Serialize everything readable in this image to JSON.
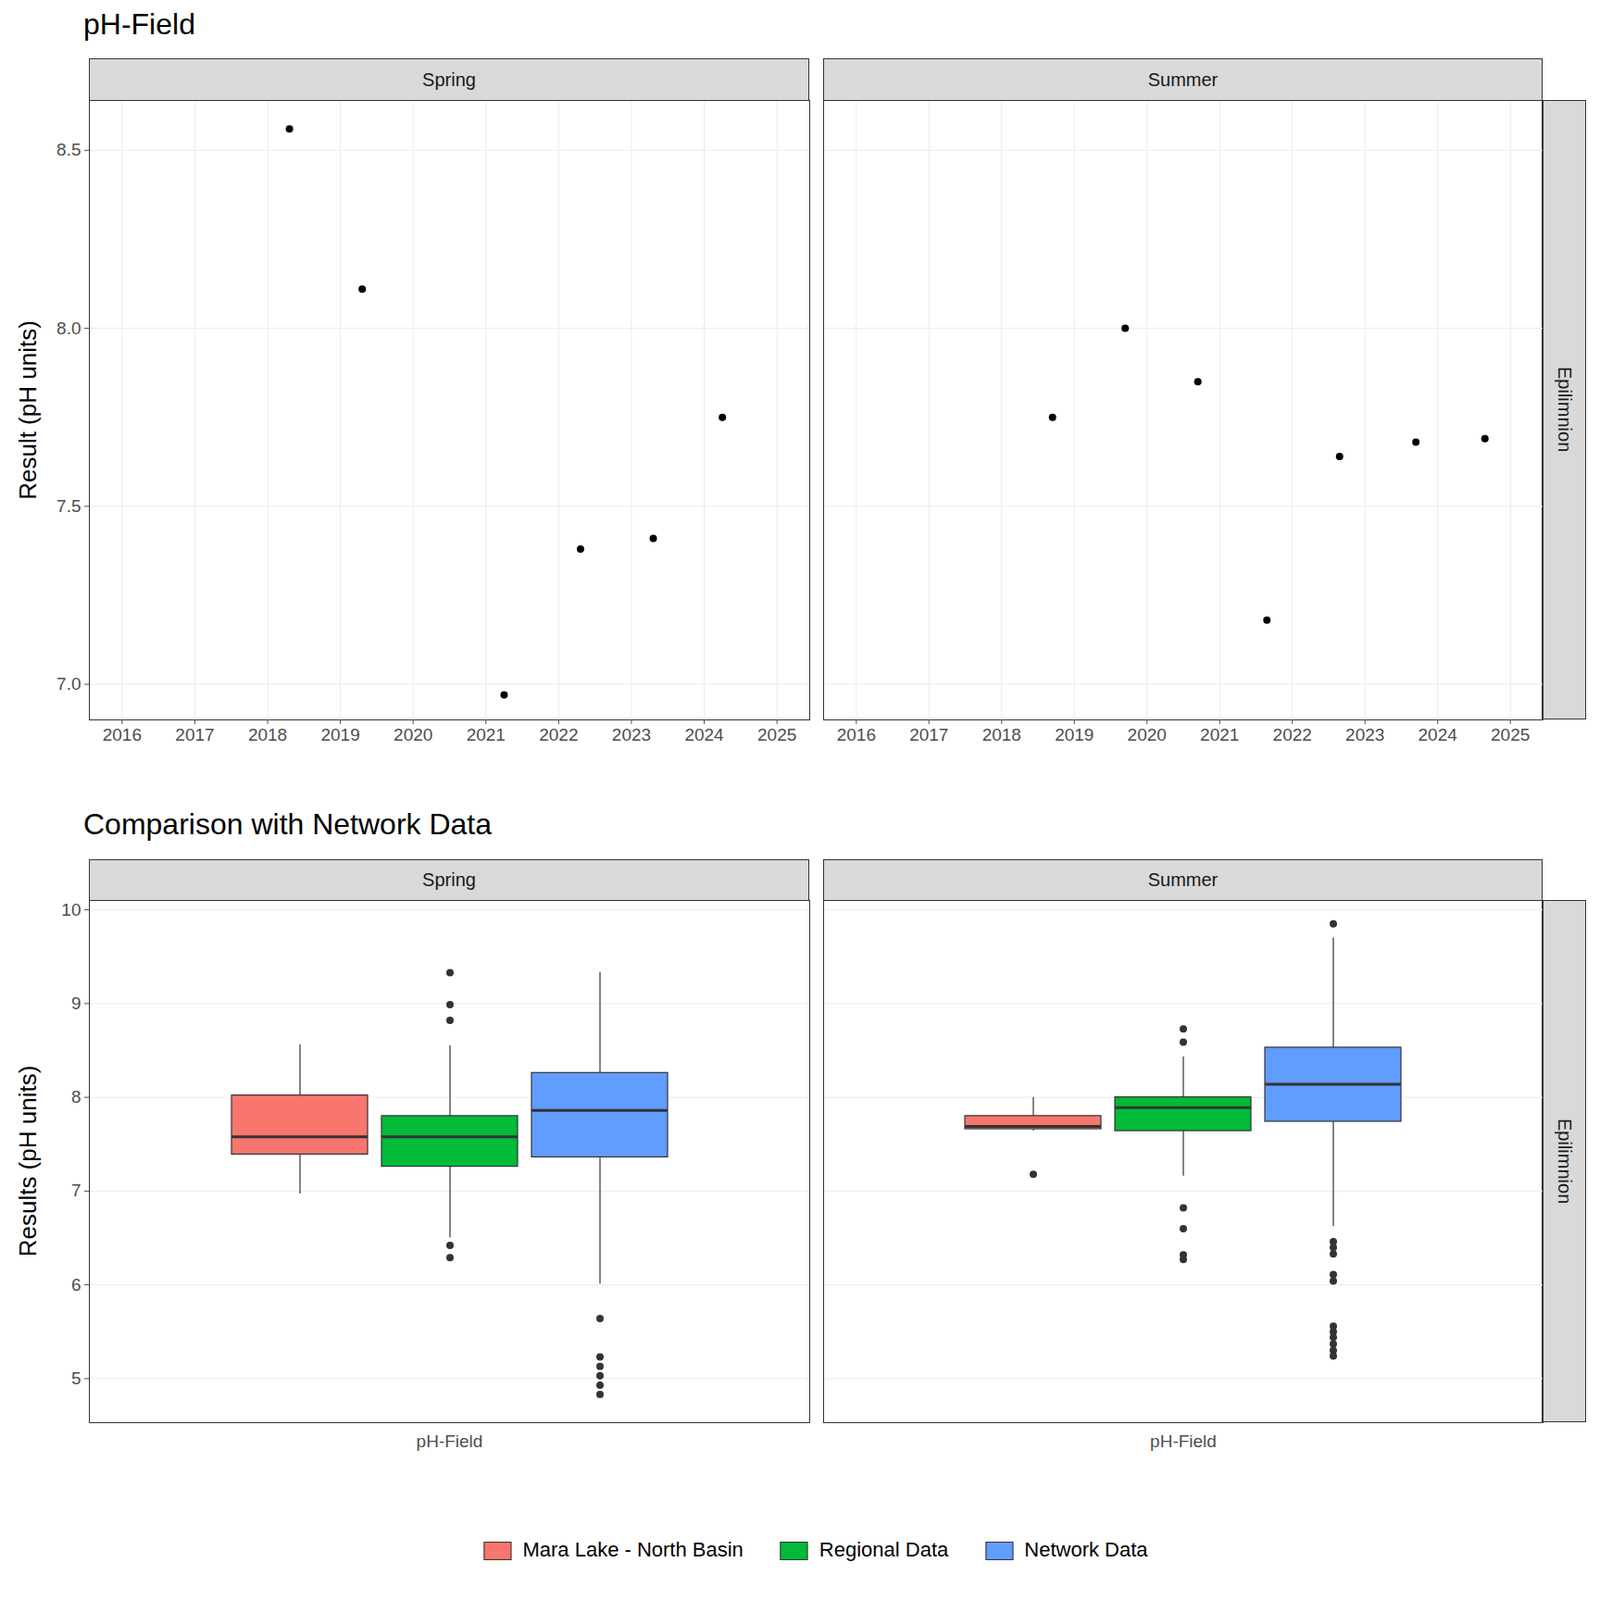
{
  "chart_data": [
    {
      "type": "scatter",
      "title": "pH-Field",
      "y_label": "Result (pH units)",
      "row_facet": "Epilimnion",
      "color": "#000000",
      "grid": true,
      "xlim": [
        2015.55,
        2025.45
      ],
      "xticks": [
        2016,
        2017,
        2018,
        2019,
        2020,
        2021,
        2022,
        2023,
        2024,
        2025
      ],
      "ylim": [
        6.9,
        8.64
      ],
      "yticks": [
        {
          "value": 7,
          "label": "7.0"
        },
        7.5,
        {
          "value": 8,
          "label": "8.0"
        },
        8.5
      ],
      "facets": [
        {
          "name": "Spring",
          "x": [
            2018.3,
            2019.3,
            2021.25,
            2022.3,
            2023.3,
            2024.25
          ],
          "values": [
            8.56,
            8.11,
            6.97,
            7.38,
            7.41,
            7.75
          ]
        },
        {
          "name": "Summer",
          "x": [
            2018.7,
            2019.7,
            2020.7,
            2021.65,
            2022.65,
            2023.7,
            2024.65
          ],
          "values": [
            7.75,
            8.0,
            7.85,
            7.18,
            7.64,
            7.68,
            7.69
          ]
        }
      ]
    },
    {
      "type": "box",
      "title": "Comparison with Network Data",
      "y_label": "Results (pH units)",
      "row_facet": "Epilimnion",
      "categories": [
        "pH-Field"
      ],
      "grid": true,
      "legend": "bottom",
      "ylim": [
        4.53,
        10.1
      ],
      "yticks": [
        5,
        6,
        7,
        8,
        9,
        10
      ],
      "facets": [
        {
          "name": "Spring",
          "series": [
            {
              "name": "Mara Lake - North Basin",
              "color": "#F8766D",
              "whisker_low": 6.97,
              "q1": 7.39,
              "median": 7.58,
              "q3": 8.02,
              "whisker_high": 8.56,
              "outliers": []
            },
            {
              "name": "Regional Data",
              "color": "#00BA38",
              "whisker_low": 6.5,
              "q1": 7.26,
              "median": 7.58,
              "q3": 7.8,
              "whisker_high": 8.55,
              "outliers": [
                9.33,
                8.99,
                8.82,
                6.42,
                6.29
              ]
            },
            {
              "name": "Network Data",
              "color": "#619CFF",
              "whisker_low": 6.01,
              "q1": 7.36,
              "median": 7.86,
              "q3": 8.26,
              "whisker_high": 9.33,
              "outliers": [
                5.64,
                5.23,
                5.13,
                5.03,
                4.93,
                4.83
              ]
            }
          ]
        },
        {
          "name": "Summer",
          "series": [
            {
              "name": "Mara Lake - North Basin",
              "color": "#F8766D",
              "whisker_low": 7.64,
              "q1": 7.66,
              "median": 7.69,
              "q3": 7.8,
              "whisker_high": 8.0,
              "outliers": [
                7.18
              ]
            },
            {
              "name": "Regional Data",
              "color": "#00BA38",
              "whisker_low": 7.16,
              "q1": 7.64,
              "median": 7.89,
              "q3": 8.0,
              "whisker_high": 8.43,
              "outliers": [
                8.73,
                8.59,
                6.82,
                6.6,
                6.32,
                6.27
              ]
            },
            {
              "name": "Network Data",
              "color": "#619CFF",
              "whisker_low": 6.62,
              "q1": 7.74,
              "median": 8.14,
              "q3": 8.53,
              "whisker_high": 9.7,
              "outliers": [
                9.85,
                6.46,
                6.4,
                6.33,
                6.11,
                6.04,
                5.56,
                5.5,
                5.44,
                5.37,
                5.3,
                5.24
              ]
            }
          ]
        }
      ]
    }
  ]
}
